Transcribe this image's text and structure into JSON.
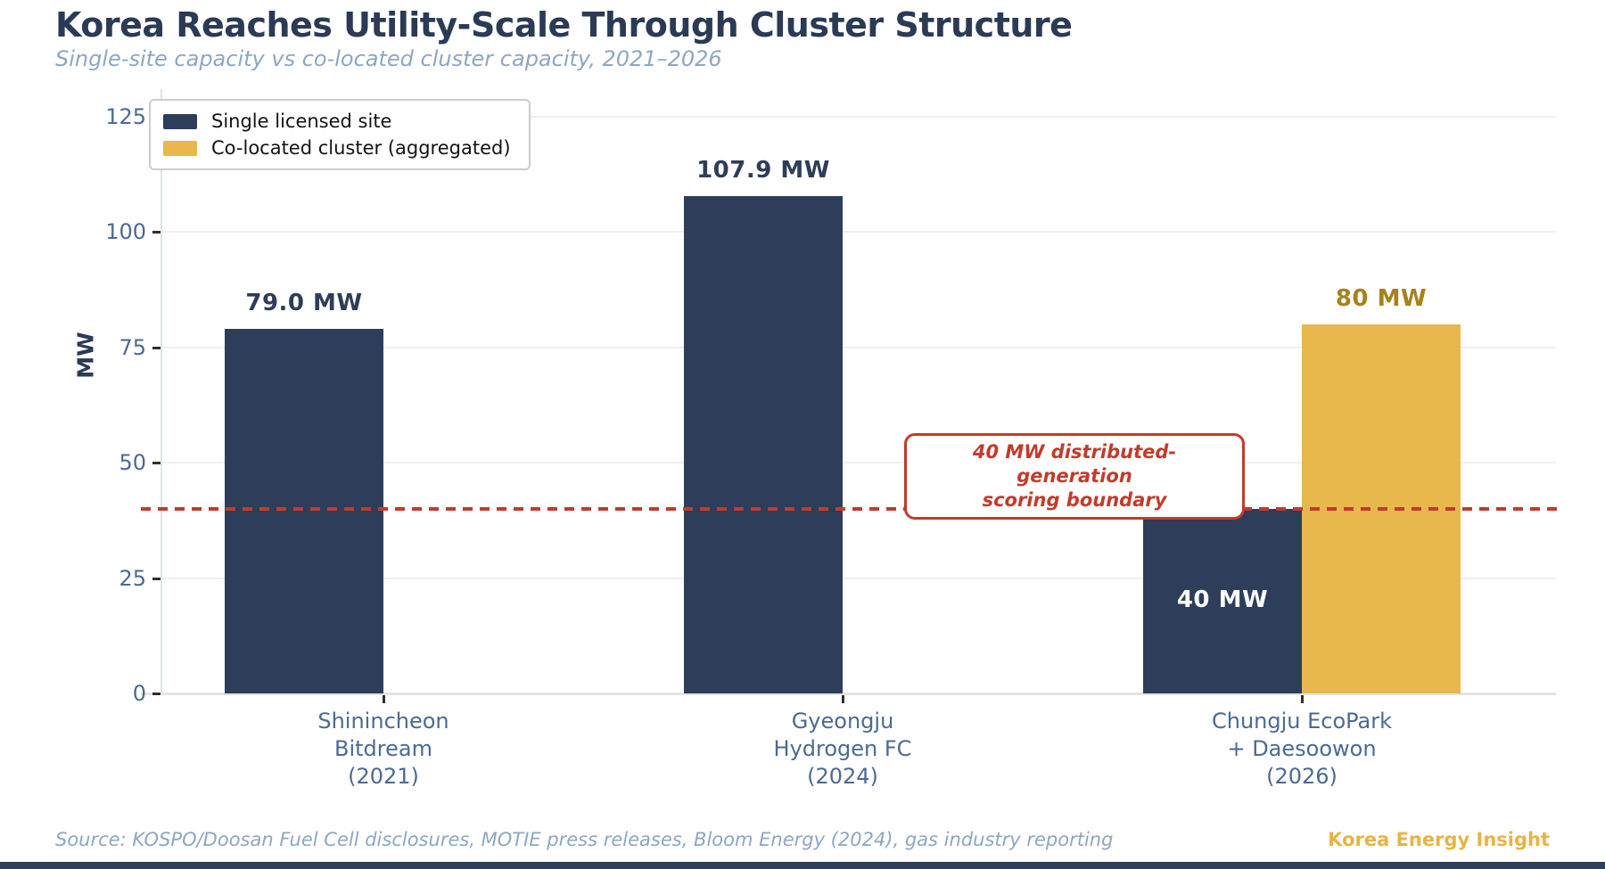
{
  "header": {
    "title": "Korea Reaches Utility-Scale Through Cluster Structure",
    "subtitle": "Single-site capacity vs co-located cluster capacity, 2021–2026"
  },
  "chart_data": {
    "type": "bar",
    "title": "Korea Reaches Utility-Scale Through Cluster Structure",
    "subtitle": "Single-site capacity vs co-located cluster capacity, 2021–2026",
    "categories": [
      "Shinincheon\nBitdream\n(2021)",
      "Gyeongju\nHydrogen FC\n(2024)",
      "Chungju EcoPark\n+ Daesoowon\n(2026)"
    ],
    "series": [
      {
        "name": "Single licensed site",
        "color": "#2e3d59",
        "values": [
          79.0,
          107.9,
          40
        ]
      },
      {
        "name": "Co-located cluster (aggregated)",
        "color": "#e8b84d",
        "values": [
          null,
          null,
          80
        ]
      }
    ],
    "value_labels": [
      {
        "series": 0,
        "category": 0,
        "text": "79.0 MW",
        "position": "above",
        "color": "#2e3d59"
      },
      {
        "series": 0,
        "category": 1,
        "text": "107.9 MW",
        "position": "above",
        "color": "#2e3d59"
      },
      {
        "series": 0,
        "category": 2,
        "text": "40 MW",
        "position": "inside",
        "color": "#ffffff"
      },
      {
        "series": 1,
        "category": 2,
        "text": "80 MW",
        "position": "above",
        "color": "#a9801c"
      }
    ],
    "ylabel": "MW",
    "yticks": [
      0,
      25,
      50,
      75,
      100,
      125
    ],
    "ylim": [
      0,
      131
    ],
    "grid": true,
    "legend_position": "upper left",
    "reference_line": {
      "value": 40,
      "color": "#c23b2c",
      "style": "dashed",
      "label": "40 MW distributed-generation\nscoring boundary"
    }
  },
  "footer": {
    "source": "Source: KOSPO/Doosan Fuel Cell disclosures, MOTIE press releases, Bloom Energy (2024), gas industry reporting",
    "brand": "Korea Energy Insight"
  }
}
